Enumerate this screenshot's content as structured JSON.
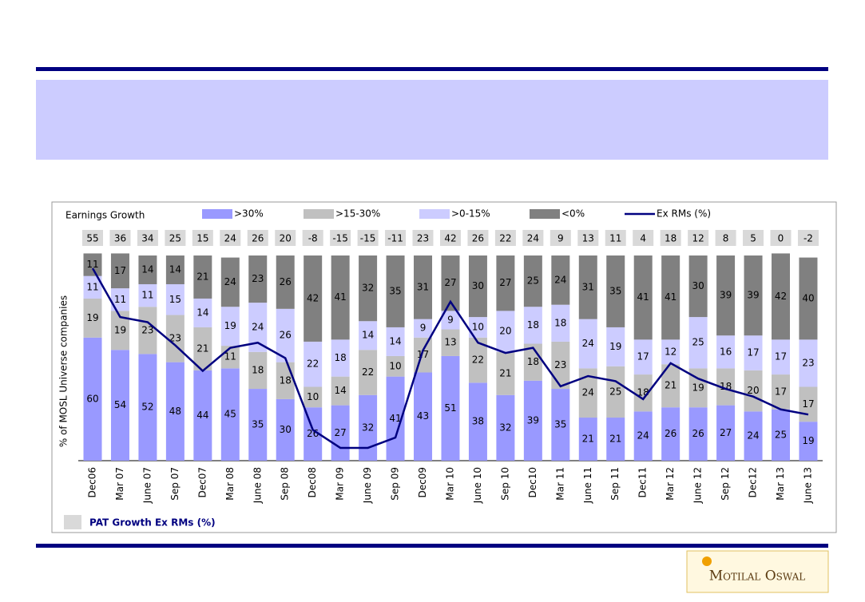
{
  "chart_data": {
    "type": "bar",
    "stacked": true,
    "title": "Earnings Growth",
    "y_label": "% of MOSL Universe companies",
    "box_label": "PAT Growth Ex RMs (%)",
    "categories": [
      "Dec06",
      "Mar 07",
      "June 07",
      "Sep 07",
      "Dec07",
      "Mar 08",
      "June 08",
      "Sep 08",
      "Dec08",
      "Mar 09",
      "June 09",
      "Sep 09",
      "Dec09",
      "Mar 10",
      "June 10",
      "Sep 10",
      "Dec10",
      "Mar 11",
      "June 11",
      "Sep 11",
      "Dec11",
      "Mar 12",
      "June 12",
      "Sep 12",
      "Dec12",
      "Mar 13",
      "June 13"
    ],
    "ylim": [
      0,
      100
    ],
    "y2lim": [
      -20,
      60
    ],
    "series": [
      {
        "name": ">30%",
        "color": "#9999ff",
        "values": [
          60,
          54,
          52,
          48,
          44,
          45,
          35,
          30,
          26,
          27,
          32,
          41,
          43,
          51,
          38,
          32,
          39,
          35,
          21,
          21,
          24,
          26,
          26,
          27,
          24,
          25,
          19
        ]
      },
      {
        "name": ">15-30%",
        "color": "#c0c0c0",
        "values": [
          19,
          19,
          23,
          23,
          21,
          11,
          18,
          18,
          10,
          14,
          22,
          10,
          17,
          13,
          22,
          21,
          18,
          23,
          24,
          25,
          18,
          21,
          19,
          18,
          20,
          17,
          17
        ]
      },
      {
        "name": ">0-15%",
        "color": "#ccccff",
        "values": [
          11,
          11,
          11,
          15,
          14,
          19,
          24,
          26,
          22,
          18,
          14,
          14,
          9,
          9,
          10,
          20,
          18,
          18,
          24,
          19,
          17,
          12,
          25,
          16,
          17,
          17,
          23
        ]
      },
      {
        "name": "<0%",
        "color": "#808080",
        "values": [
          11,
          17,
          14,
          14,
          21,
          24,
          23,
          26,
          42,
          41,
          32,
          35,
          31,
          27,
          30,
          27,
          25,
          24,
          31,
          35,
          41,
          41,
          30,
          39,
          39,
          42,
          40
        ]
      },
      {
        "name": "Ex RMs (%)",
        "type": "line",
        "axis": "y2",
        "color": "#000080",
        "values": [
          55,
          36,
          34,
          25,
          15,
          24,
          26,
          20,
          -8,
          -15,
          -15,
          -11,
          23,
          42,
          26,
          22,
          24,
          9,
          13,
          11,
          4,
          18,
          12,
          8,
          5,
          0,
          -2
        ]
      }
    ]
  },
  "logo": "Motilal Oswal"
}
